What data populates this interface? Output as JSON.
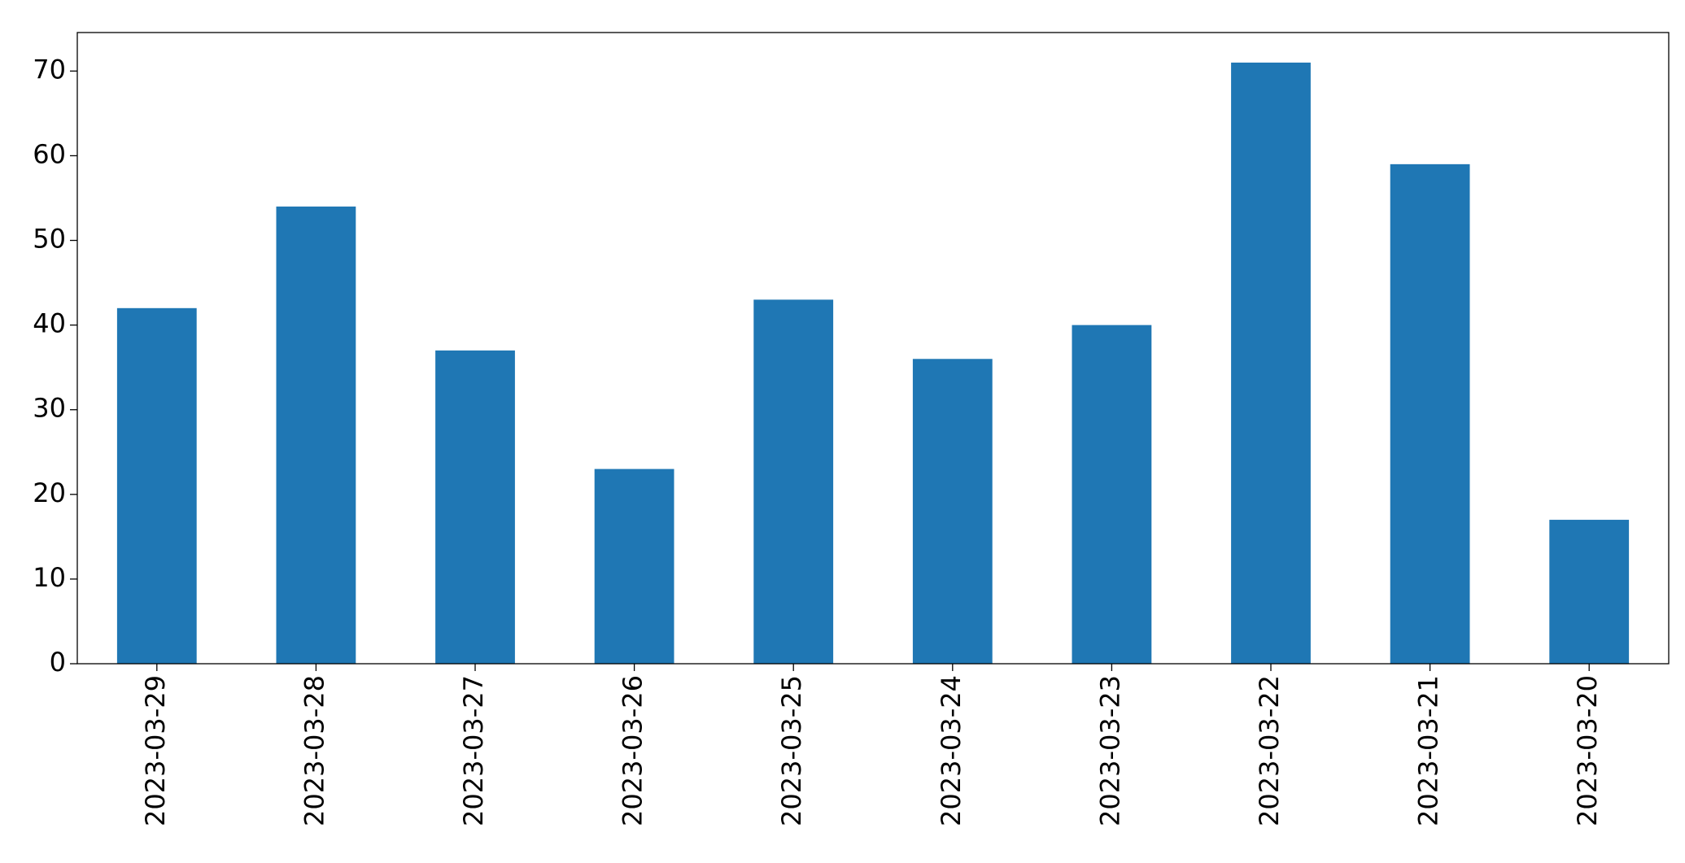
{
  "chart_data": {
    "type": "bar",
    "categories": [
      "2023-03-29",
      "2023-03-28",
      "2023-03-27",
      "2023-03-26",
      "2023-03-25",
      "2023-03-24",
      "2023-03-23",
      "2023-03-22",
      "2023-03-21",
      "2023-03-20"
    ],
    "values": [
      42,
      54,
      37,
      23,
      43,
      36,
      40,
      71,
      59,
      17
    ],
    "color": "#1f77b4",
    "ylim": [
      0,
      74.55
    ],
    "yticks": [
      0,
      10,
      20,
      30,
      40,
      50,
      60,
      70
    ],
    "grid": false
  }
}
